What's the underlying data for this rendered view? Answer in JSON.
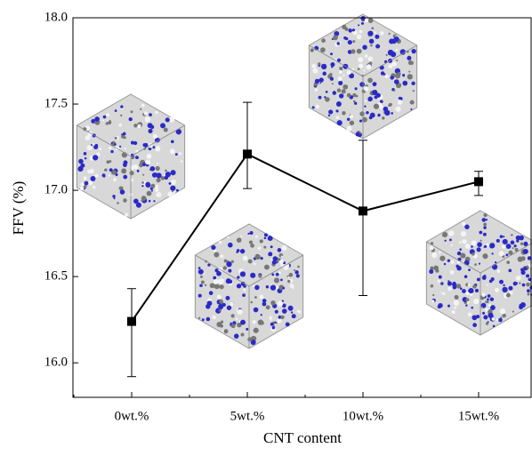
{
  "chart_data": {
    "type": "line",
    "categories": [
      "0wt.%",
      "5wt.%",
      "10wt.%",
      "15wt.%"
    ],
    "values": [
      16.24,
      17.21,
      16.88,
      17.05
    ],
    "error_minus": [
      0.32,
      0.2,
      0.49,
      0.08
    ],
    "error_plus": [
      0.19,
      0.3,
      0.41,
      0.06
    ],
    "color": "#000000",
    "xlabel": "CNT content",
    "ylabel": "FFV (%)",
    "ylim": [
      15.8,
      18.0
    ],
    "yticks": [
      {
        "value": 16.0,
        "label": "16.0"
      },
      16.5,
      {
        "value": 17.0,
        "label": "17.0"
      },
      17.5,
      {
        "value": 18.0,
        "label": "18.0"
      }
    ]
  }
}
